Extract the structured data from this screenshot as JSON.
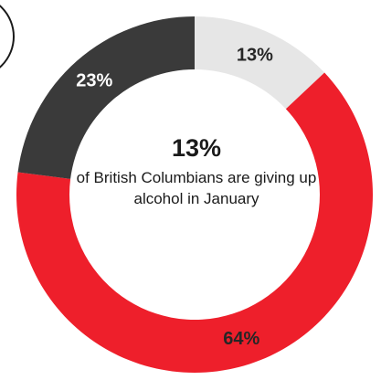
{
  "chart_data": {
    "type": "pie",
    "variant": "donut",
    "slices": [
      {
        "label": "13%",
        "value": 13,
        "color": "#e6e6e6",
        "label_color": "#262626"
      },
      {
        "label": "64%",
        "value": 64,
        "color": "#ee1f2b",
        "label_color": "#262626"
      },
      {
        "label": "23%",
        "value": 23,
        "color": "#3a3a3a",
        "label_color": "#ffffff"
      }
    ],
    "center": {
      "value": "13%",
      "caption": "of British Columbians are giving up alcohol in January"
    }
  }
}
